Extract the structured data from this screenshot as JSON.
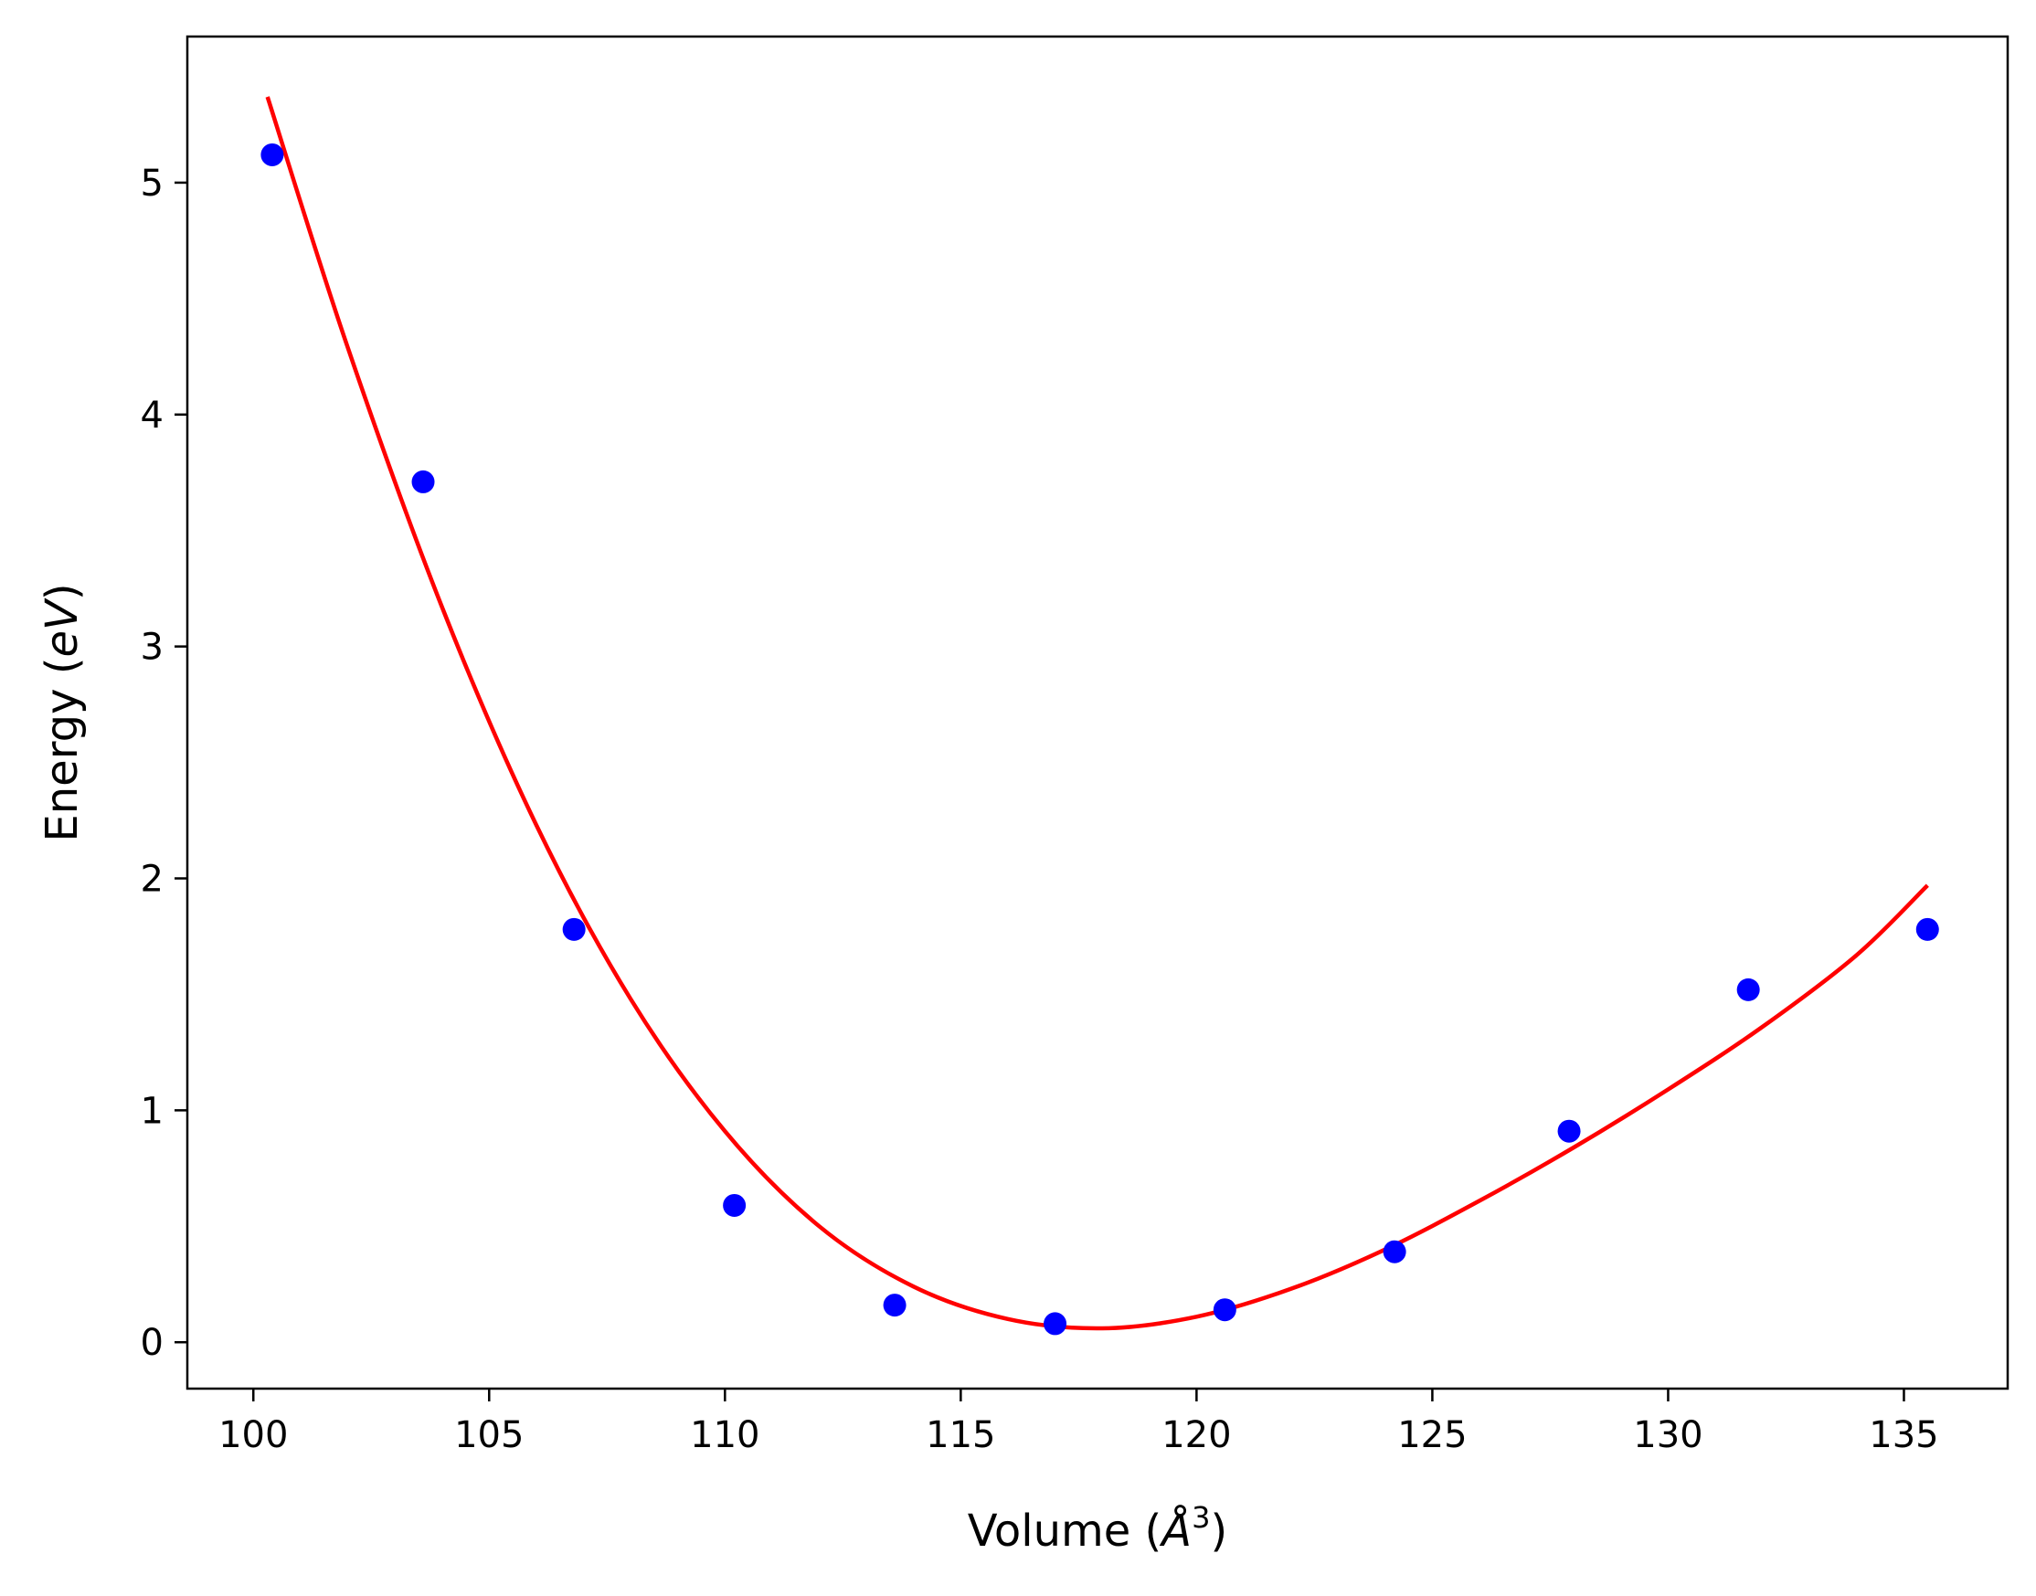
{
  "chart_data": {
    "type": "scatter",
    "title": "",
    "xlabel": "Volume",
    "xlabel_unit": "Å",
    "xlabel_unit_exponent": "3",
    "ylabel": "Energy",
    "ylabel_unit": "eV",
    "xlim": [
      98.6,
      137.2
    ],
    "ylim": [
      -0.2,
      5.63
    ],
    "xticks": [
      100,
      105,
      110,
      115,
      120,
      125,
      130,
      135
    ],
    "yticks": [
      0,
      1,
      2,
      3,
      4,
      5
    ],
    "grid": false,
    "legend": "none",
    "series": [
      {
        "kind": "points",
        "color": "#0000ff",
        "x": [
          100.4,
          103.6,
          106.8,
          110.2,
          113.6,
          117.0,
          120.6,
          124.2,
          127.9,
          131.7,
          135.5
        ],
        "y": [
          5.12,
          3.71,
          1.78,
          0.59,
          0.16,
          0.08,
          0.14,
          0.39,
          0.91,
          1.52,
          1.78
        ]
      },
      {
        "kind": "fit-curve",
        "color": "#ff0000",
        "x": [
          100.3,
          102.0,
          104.0,
          106.0,
          108.0,
          110.0,
          112.0,
          114.0,
          116.0,
          118.0,
          120.0,
          122.0,
          124.0,
          126.0,
          128.0,
          130.0,
          132.0,
          134.0,
          135.5
        ],
        "y": [
          5.37,
          4.29,
          3.17,
          2.23,
          1.48,
          0.91,
          0.5,
          0.24,
          0.1,
          0.06,
          0.11,
          0.23,
          0.4,
          0.61,
          0.84,
          1.09,
          1.36,
          1.67,
          1.97
        ]
      }
    ]
  }
}
